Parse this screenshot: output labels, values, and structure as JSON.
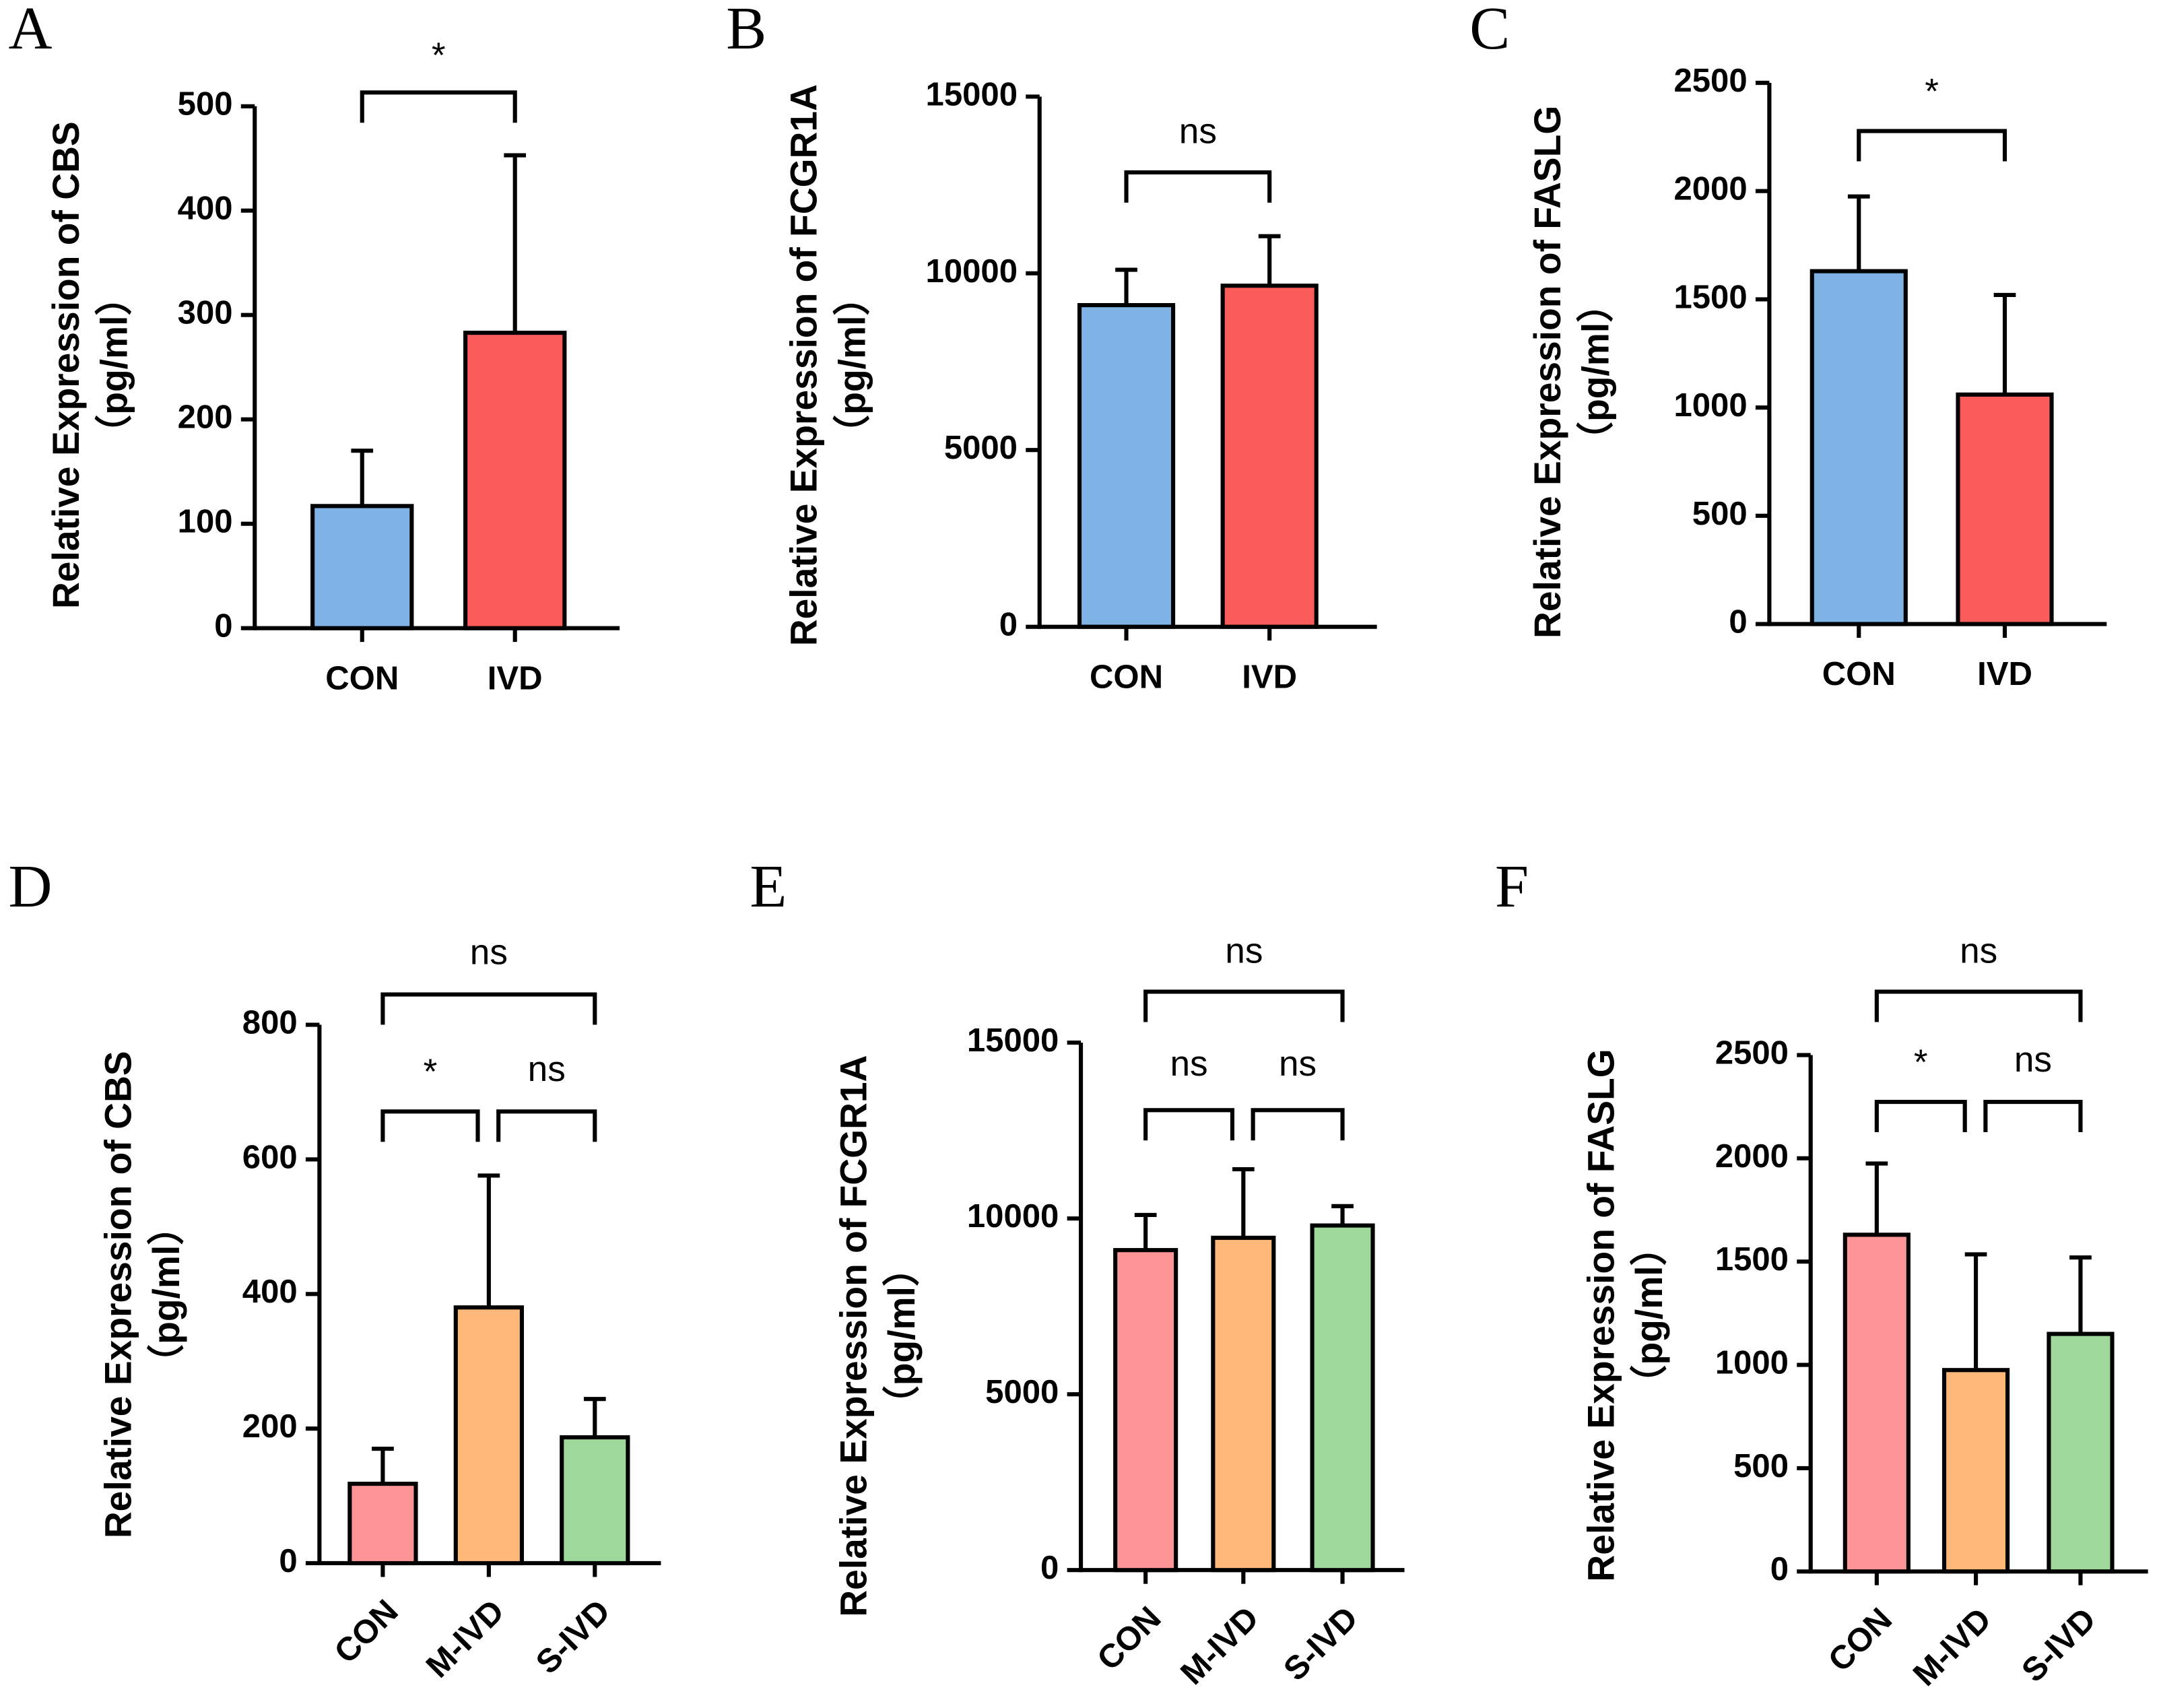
{
  "chart_data": [
    {
      "type": "bar",
      "panel": "A",
      "y_label": "Relative Expression of CBS",
      "y_unit": "（pg/ml）",
      "categories": [
        "CON",
        "IVD"
      ],
      "values": [
        117,
        283
      ],
      "errors": [
        53,
        170
      ],
      "colors": [
        "#7fb2e5",
        "#fc5b5b"
      ],
      "ylim": [
        0,
        500
      ],
      "yticks": [
        0,
        100,
        200,
        300,
        400,
        500
      ],
      "annotations": [
        "*"
      ]
    },
    {
      "type": "bar",
      "panel": "B",
      "y_label": "Relative Expression of FCGR1A",
      "y_unit": "（pg/ml）",
      "categories": [
        "CON",
        "IVD"
      ],
      "values": [
        9100,
        9650
      ],
      "errors": [
        1000,
        1400
      ],
      "colors": [
        "#7fb2e5",
        "#fc5b5b"
      ],
      "ylim": [
        0,
        15000
      ],
      "yticks": [
        0,
        5000,
        10000,
        15000
      ],
      "annotations": [
        "ns"
      ]
    },
    {
      "type": "bar",
      "panel": "C",
      "y_label": "Relative Expression of FASLG",
      "y_unit": "（pg/ml）",
      "categories": [
        "CON",
        "IVD"
      ],
      "values": [
        1630,
        1060
      ],
      "errors": [
        345,
        460
      ],
      "colors": [
        "#7fb2e5",
        "#fc5b5b"
      ],
      "ylim": [
        0,
        2500
      ],
      "yticks": [
        0,
        500,
        1000,
        1500,
        2000,
        2500
      ],
      "annotations": [
        "*"
      ]
    },
    {
      "type": "bar",
      "panel": "D",
      "y_label": "Relative Expression of CBS",
      "y_unit": "（pg/ml）",
      "categories": [
        "CON",
        "M-IVD",
        "S-IVD"
      ],
      "values": [
        118,
        380,
        187
      ],
      "errors": [
        52,
        196,
        57
      ],
      "colors": [
        "#fd9596",
        "#fdb87a",
        "#9fd89b"
      ],
      "ylim": [
        0,
        800
      ],
      "yticks": [
        0,
        200,
        400,
        600,
        800
      ],
      "annotations": [
        "ns",
        "*",
        "ns"
      ]
    },
    {
      "type": "bar",
      "panel": "E",
      "y_label": "Relative Expression of FCGR1A",
      "y_unit": "（pg/ml）",
      "categories": [
        "CON",
        "M-IVD",
        "S-IVD"
      ],
      "values": [
        9100,
        9450,
        9800
      ],
      "errors": [
        1000,
        1950,
        550
      ],
      "colors": [
        "#fd9596",
        "#fdb87a",
        "#9fd89b"
      ],
      "ylim": [
        0,
        15000
      ],
      "yticks": [
        0,
        5000,
        10000,
        15000
      ],
      "annotations": [
        "ns",
        "ns",
        "ns"
      ]
    },
    {
      "type": "bar",
      "panel": "F",
      "y_label": "Relative Expression of FASLG",
      "y_unit": "（pg/ml）",
      "categories": [
        "CON",
        "M-IVD",
        "S-IVD"
      ],
      "values": [
        1630,
        975,
        1150
      ],
      "errors": [
        345,
        560,
        370
      ],
      "colors": [
        "#fd9596",
        "#fdb87a",
        "#9fd89b"
      ],
      "ylim": [
        0,
        2500
      ],
      "yticks": [
        0,
        500,
        1000,
        1500,
        2000,
        2500
      ],
      "annotations": [
        "ns",
        "*",
        "ns"
      ]
    }
  ]
}
